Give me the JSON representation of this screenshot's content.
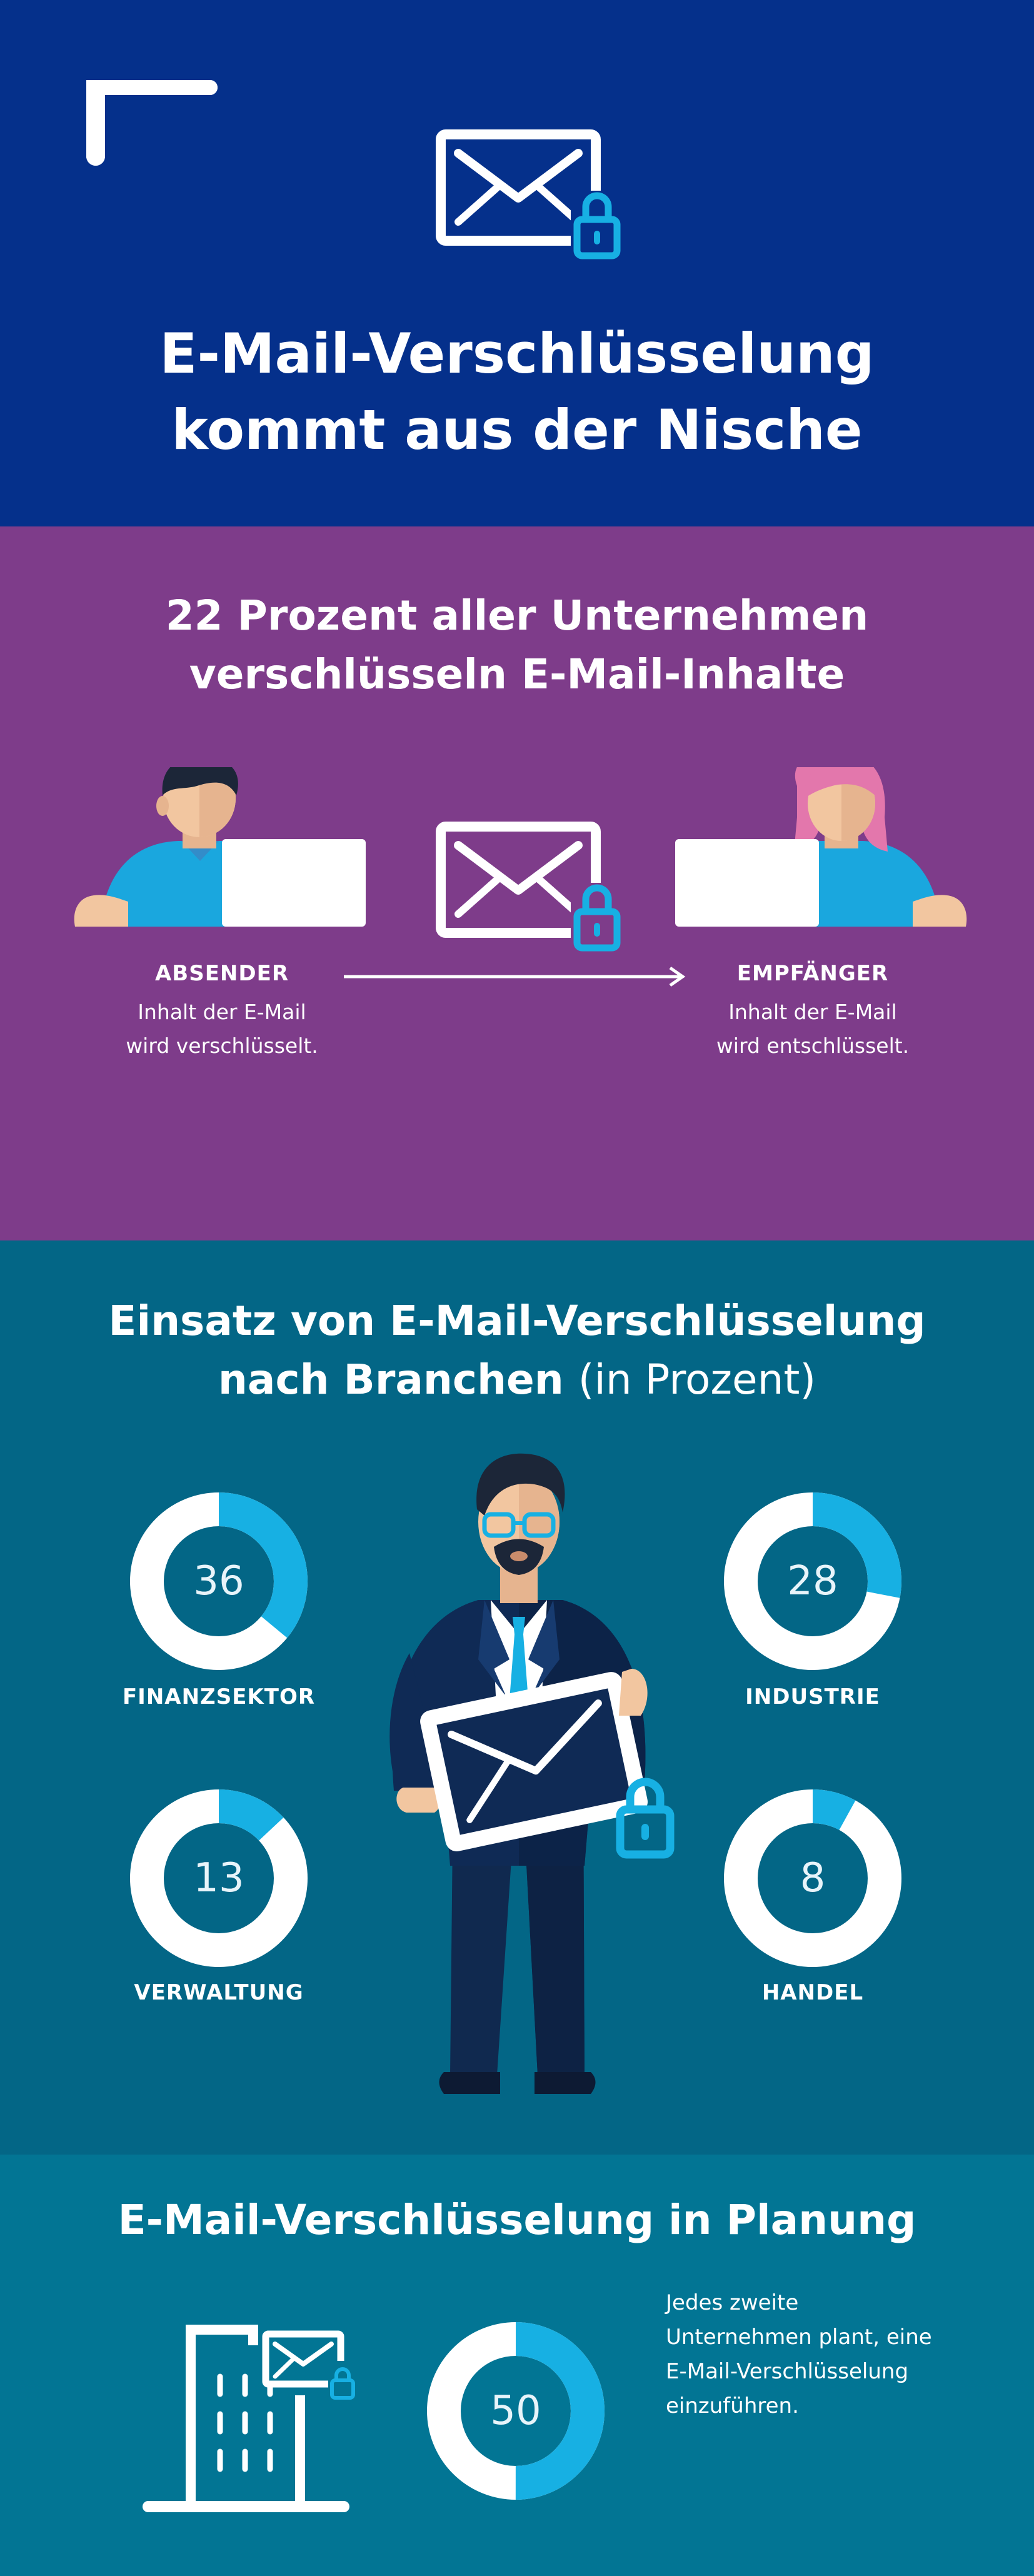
{
  "colors": {
    "header_bg": "#05308b",
    "section2_bg": "#7e3c8a",
    "section3_bg": "#036686",
    "section4_bg": "#027594",
    "accent_cyan": "#17b0e3",
    "white": "#ffffff"
  },
  "header": {
    "title_line1": "E-Mail-Verschlüsselung",
    "title_line2": "kommt aus der Nische"
  },
  "flow": {
    "title_line1": "22 Prozent aller Unternehmen",
    "title_line2": "verschlüsseln E-Mail-Inhalte",
    "sender": {
      "label": "ABSENDER",
      "line1": "Inhalt der E-Mail",
      "line2": "wird verschlüsselt."
    },
    "recipient": {
      "label": "EMPFÄNGER",
      "line1": "Inhalt der E-Mail",
      "line2": "wird entschlüsselt."
    }
  },
  "sectors": {
    "title_line1": "Einsatz von E-Mail-Verschlüsselung",
    "title_bold2": "nach Branchen",
    "title_unit": "(in Prozent)",
    "items": [
      {
        "label": "FINANZSEKTOR",
        "value": 36
      },
      {
        "label": "INDUSTRIE",
        "value": 28
      },
      {
        "label": "VERWALTUNG",
        "value": 13
      },
      {
        "label": "HANDEL",
        "value": 8
      }
    ]
  },
  "planning": {
    "title": "E-Mail-Verschlüsselung in Planung",
    "value": 50,
    "text_line1": "Jedes zweite",
    "text_line2": "Unternehmen plant, eine",
    "text_line3": "E-Mail-Verschlüsselung",
    "text_line4": "einzuführen."
  }
}
